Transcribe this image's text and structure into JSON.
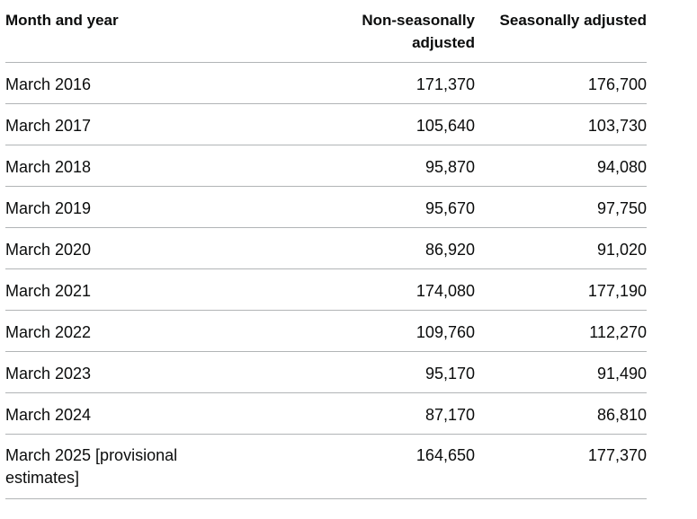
{
  "table": {
    "headers": {
      "month": "Month and year",
      "non_seasonal": "Non-seasonally adjusted",
      "seasonal": "Seasonally adjusted"
    },
    "rows": [
      {
        "month": "March 2016",
        "non_seasonal": "171,370",
        "seasonal": "176,700"
      },
      {
        "month": "March 2017",
        "non_seasonal": "105,640",
        "seasonal": "103,730"
      },
      {
        "month": "March 2018",
        "non_seasonal": "95,870",
        "seasonal": "94,080"
      },
      {
        "month": "March 2019",
        "non_seasonal": "95,670",
        "seasonal": "97,750"
      },
      {
        "month": "March 2020",
        "non_seasonal": "86,920",
        "seasonal": "91,020"
      },
      {
        "month": "March 2021",
        "non_seasonal": "174,080",
        "seasonal": "177,190"
      },
      {
        "month": "March 2022",
        "non_seasonal": "109,760",
        "seasonal": "112,270"
      },
      {
        "month": "March 2023",
        "non_seasonal": "95,170",
        "seasonal": "91,490"
      },
      {
        "month": "March 2024",
        "non_seasonal": "87,170",
        "seasonal": "86,810"
      },
      {
        "month": "March 2025 [provisional estimates]",
        "non_seasonal": "164,650",
        "seasonal": "177,370"
      }
    ]
  }
}
